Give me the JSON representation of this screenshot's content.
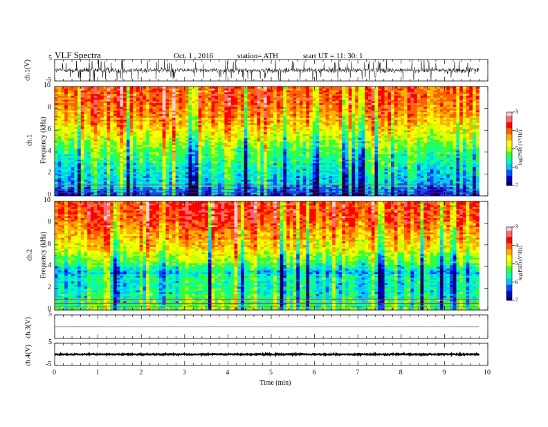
{
  "header": {
    "title": "VLF  Spectra",
    "date": "Oct. 1  , 2016",
    "station": "station= ATH",
    "start": "start  UT  =    11: 30: 1"
  },
  "panels": {
    "ch1_wave_label": "ch.1(V)",
    "spec1_label_ch": "ch.1",
    "spec1_label_freq": "Frequency  (kHz)",
    "spec2_label_ch": "ch.2",
    "spec2_label_freq": "Frequency  (kHz)",
    "ch3_wave_label": "ch.3(V)",
    "ch4_wave_label": "ch.4(V)",
    "colorbar_label": "log(PSD) (V²/Hz)",
    "x_axis_label": "Time  (min)"
  },
  "colors": {
    "palette": [
      "#000055",
      "#0000c8",
      "#0050ff",
      "#00c8ff",
      "#00ffb4",
      "#38ff38",
      "#c8ff00",
      "#ffff00",
      "#ffb000",
      "#ff6000",
      "#ff0000",
      "#ff6a6a",
      "#ffd0d0"
    ]
  },
  "chart_data": [
    {
      "type": "line",
      "name": "ch.1 waveform",
      "ylabel": "ch.1(V)",
      "ylim": [
        -5,
        5
      ],
      "y_ticks": [
        5,
        -5
      ],
      "xlim": [
        0,
        10
      ],
      "mean_level": 0,
      "noise_amplitude": 1.2,
      "spike_amplitude": 5
    },
    {
      "type": "heatmap",
      "name": "ch.1 spectrogram",
      "ylabel": "Frequency  (kHz)",
      "xlim": [
        0,
        10
      ],
      "ylim": [
        0,
        10
      ],
      "x_ticks": [
        0,
        1,
        2,
        3,
        4,
        5,
        6,
        7,
        8,
        9,
        10
      ],
      "y_ticks": [
        0,
        2,
        4,
        6,
        8,
        10
      ],
      "data_end_min": 9.8,
      "color_range": [
        -7,
        -3
      ],
      "colorbar_ticks": [
        -3,
        -4,
        -5,
        -6,
        -7
      ],
      "band_profile": {
        "freq_khz": [
          0.3,
          1,
          2,
          3,
          4,
          5,
          6,
          7,
          8,
          9,
          10
        ],
        "log_psd": [
          -6.3,
          -5.9,
          -5.8,
          -5.6,
          -5.3,
          -5.0,
          -4.6,
          -4.3,
          -4.1,
          -3.9,
          -3.9
        ]
      }
    },
    {
      "type": "heatmap",
      "name": "ch.2 spectrogram",
      "ylabel": "Frequency  (kHz)",
      "xlim": [
        0,
        10
      ],
      "ylim": [
        0,
        10
      ],
      "x_ticks": [
        0,
        1,
        2,
        3,
        4,
        5,
        6,
        7,
        8,
        9,
        10
      ],
      "y_ticks": [
        0,
        2,
        4,
        6,
        8,
        10
      ],
      "data_end_min": 9.8,
      "color_range": [
        -7,
        -3
      ],
      "colorbar_ticks": [
        -3,
        -4,
        -5,
        -6,
        -7
      ],
      "band_profile": {
        "freq_khz": [
          0.3,
          1,
          2,
          3,
          3.5,
          4,
          5,
          6,
          7,
          8,
          9,
          10
        ],
        "log_psd": [
          -5.4,
          -5.6,
          -5.8,
          -5.8,
          -6.1,
          -5.6,
          -5.1,
          -4.7,
          -4.4,
          -4.1,
          -3.9,
          -3.9
        ]
      }
    },
    {
      "type": "line",
      "name": "ch.3 waveform",
      "ylabel": "ch.3(V)",
      "ylim": [
        -5,
        5
      ],
      "y_ticks": [
        5
      ],
      "xlim": [
        0,
        10
      ],
      "mean_level": 0,
      "noise_amplitude": 0.05
    },
    {
      "type": "line",
      "name": "ch.4 waveform",
      "ylabel": "ch.4(V)",
      "ylim": [
        -5,
        5
      ],
      "y_ticks": [
        5,
        -5
      ],
      "xlim": [
        0,
        10
      ],
      "mean_level": 0,
      "noise_amplitude": 0.25,
      "x_label": "Time  (min)"
    }
  ]
}
